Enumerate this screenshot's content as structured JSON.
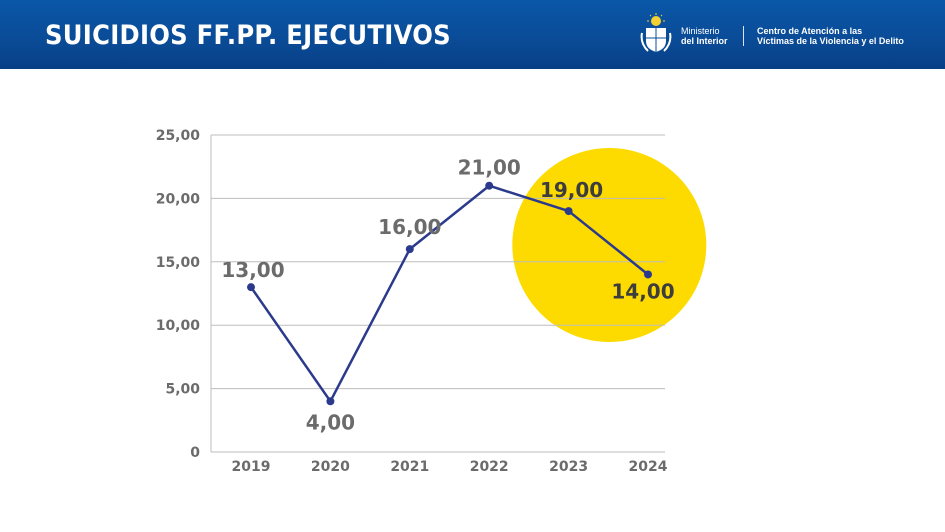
{
  "header": {
    "title": "SUICIDIOS FF.PP. EJECUTIVOS",
    "ministry_line1": "Ministerio",
    "ministry_line2": "del Interior",
    "center_line1": "Centro de Atención a las",
    "center_line2": "Víctimas de la Violencia y el Delito"
  },
  "colors": {
    "header_bg": "#0a4c98",
    "line": "#2b3a8c",
    "highlight": "#fedb00",
    "grid": "#bdbdbd",
    "text": "#6b6b6b"
  },
  "icons": {
    "logo": "coat-of-arms-icon"
  },
  "chart_data": {
    "type": "line",
    "categories": [
      "2019",
      "2020",
      "2021",
      "2022",
      "2023",
      "2024"
    ],
    "values": [
      13,
      4,
      16,
      21,
      19,
      14
    ],
    "data_labels": [
      "13,00",
      "4,00",
      "16,00",
      "21,00",
      "19,00",
      "14,00"
    ],
    "y_ticks": [
      0,
      5,
      10,
      15,
      20,
      25
    ],
    "y_tick_labels": [
      "0",
      "5,00",
      "10,00",
      "15,00",
      "20,00",
      "25,00"
    ],
    "ylim": [
      0,
      25
    ],
    "grid": true,
    "highlight": {
      "shape": "circle",
      "categories": [
        "2023",
        "2024"
      ]
    }
  }
}
